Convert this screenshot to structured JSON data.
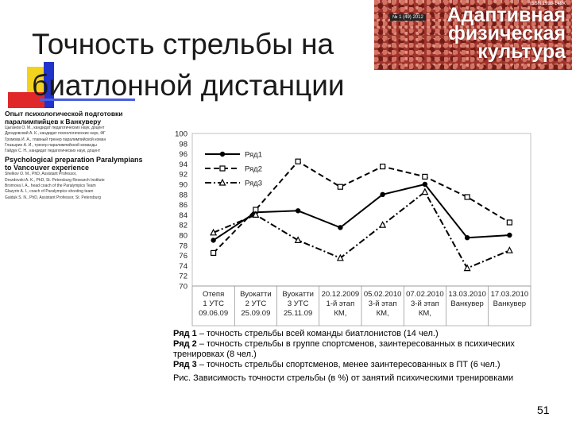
{
  "slide": {
    "title": "Точность стрельбы на биатлонной дистанции",
    "page_number": "51"
  },
  "cover": {
    "title_line1": "Адаптивная",
    "title_line2": "физическая",
    "title_line3": "культура",
    "issn": "ISSN 1998-149X",
    "issue": "№ 1 (49) 2012"
  },
  "article": {
    "heading_ru": "Опыт психологической подготовки паралимпийцев к Ванкуверу",
    "authors_ru": [
      "Цыганов О. М., кандидат педагогических наук, доцент",
      "Дроздовский А. К., кандидат психологических наук, ФГ",
      "Громова И. А., главный тренер паралимпийской коман",
      "Глазырин А. И., тренер паралимпийской команды",
      "Гайдук С. Н., кандидат педагогических наук, доцент"
    ],
    "heading_en": "Psychological preparation Paralympians to Vancouver experience",
    "authors_en": [
      "Shelkov O. M., PhD, Assistant Professor,",
      "Drozdovski A. K., PhD, St. Petersburg Research Institute",
      "Bromova I. A., head coach of the Paralympics Team",
      "Glazyrin A. I., coach of Paralympics shooting team",
      "Gaiduk S. N., PhD, Assistant Professor, St. Petersburg"
    ]
  },
  "chart_data": {
    "type": "line",
    "categories": [
      [
        "Отепя",
        "1 УТС",
        "09.06.09"
      ],
      [
        "Вуокатти",
        "2 УТС",
        "25.09.09"
      ],
      [
        "Вуокатти",
        "3 УТС",
        "25.11.09"
      ],
      [
        "20.12.2009",
        "1-й этап",
        "КМ,"
      ],
      [
        "05.02.2010",
        "3-й этап",
        "КМ,"
      ],
      [
        "07.02.2010",
        "3-й этап",
        "КМ,"
      ],
      [
        "13.03.2010",
        "Ванкувер",
        ""
      ],
      [
        "17.03.2010",
        "Ванкувер",
        ""
      ]
    ],
    "series": [
      {
        "name": "Ряд1",
        "values": [
          79,
          84.5,
          84.8,
          81.5,
          88,
          90,
          79.5,
          80
        ],
        "color": "#000000",
        "marker": "circle",
        "dash": "solid"
      },
      {
        "name": "Ряд2",
        "values": [
          76.5,
          85,
          94.5,
          89.5,
          93.5,
          91.5,
          87.5,
          82.5
        ],
        "color": "#000000",
        "marker": "square",
        "dash": "dashed"
      },
      {
        "name": "Ряд3",
        "values": [
          80.5,
          84,
          79,
          75.5,
          82,
          88.5,
          73.5,
          77
        ],
        "color": "#000000",
        "marker": "triangle",
        "dash": "dashdot"
      }
    ],
    "ylim": [
      70,
      100
    ],
    "yticks": [
      "70",
      "72",
      "74",
      "76",
      "78",
      "80",
      "82",
      "84",
      "86",
      "88",
      "90",
      "92",
      "94",
      "96",
      "98",
      "100"
    ],
    "grid": false,
    "legend_position": "top-left"
  },
  "caption": {
    "row1_name": "Ряд 1",
    "row1_text": " – точность стрельбы всей команды биатлонистов (14 чел.)",
    "row2_name": "Ряд 2",
    "row2_text": " – точность стрельбы в группе спортсменов, заинтересованных в психических тренировках (8 чел.)",
    "row3_name": "Ряд 3",
    "row3_text": " – точность стрельбы спортсменов, менее заинтересованных в ПТ (6 чел.)",
    "figure": "Рис. Зависимость точности стрельбы (в %) от занятий психическими тренировками"
  }
}
